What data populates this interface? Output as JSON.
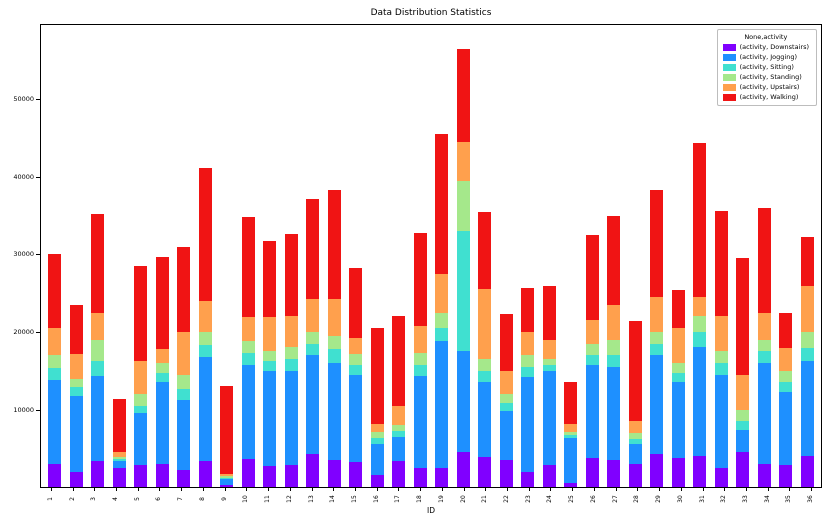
{
  "chart_data": {
    "type": "bar",
    "variant": "stacked",
    "title": "Data Distribution Statistics",
    "xlabel": "ID",
    "ylabel": "",
    "legend_title": "None,activity",
    "legend_position": "upper-right",
    "grid": false,
    "ylim": [
      0,
      59600
    ],
    "yticks": [
      10000,
      20000,
      30000,
      40000,
      50000
    ],
    "categories": [
      "1",
      "2",
      "3",
      "4",
      "5",
      "6",
      "7",
      "8",
      "9",
      "10",
      "11",
      "12",
      "13",
      "14",
      "15",
      "16",
      "17",
      "18",
      "19",
      "20",
      "21",
      "22",
      "23",
      "24",
      "25",
      "26",
      "27",
      "28",
      "29",
      "30",
      "31",
      "32",
      "33",
      "34",
      "35",
      "36"
    ],
    "series": [
      {
        "name": "(activity, Downstairs)",
        "color": "#8000FF",
        "values": [
          3000,
          2000,
          3300,
          2500,
          2800,
          3000,
          2200,
          3300,
          300,
          3600,
          2700,
          2800,
          4200,
          3500,
          3200,
          1500,
          3400,
          2500,
          2500,
          4500,
          3900,
          3500,
          2000,
          2800,
          500,
          3700,
          3500,
          3000,
          4300,
          3700,
          4000,
          2500,
          4500,
          3000,
          2800,
          4000
        ]
      },
      {
        "name": "(activity, Jogging)",
        "color": "#1E90FF",
        "values": [
          10800,
          9700,
          11000,
          800,
          6700,
          10500,
          9000,
          13500,
          700,
          12200,
          12300,
          12200,
          12800,
          12500,
          11300,
          4000,
          3100,
          11800,
          16300,
          13000,
          9600,
          6300,
          12200,
          12200,
          5800,
          12000,
          12000,
          2500,
          12700,
          9800,
          14000,
          12000,
          2800,
          13000,
          9400,
          12200
        ]
      },
      {
        "name": "(activity, Sitting)",
        "color": "#40E0D0",
        "values": [
          1500,
          1200,
          2000,
          300,
          1000,
          1200,
          1500,
          1500,
          200,
          1500,
          1200,
          1500,
          1500,
          1800,
          1300,
          800,
          700,
          1500,
          1700,
          15500,
          1500,
          1000,
          1300,
          800,
          400,
          1300,
          1500,
          700,
          1500,
          1200,
          2000,
          1500,
          1200,
          1500,
          1300,
          1800
        ]
      },
      {
        "name": "(activity, Standing)",
        "color": "#A5E88B",
        "values": [
          1700,
          1100,
          2700,
          300,
          1500,
          1300,
          1800,
          1700,
          200,
          1500,
          1300,
          1500,
          1500,
          1700,
          1400,
          800,
          800,
          1500,
          2000,
          6500,
          1500,
          1200,
          1500,
          700,
          400,
          1500,
          2000,
          800,
          1500,
          1300,
          2000,
          1500,
          1500,
          1500,
          1500,
          2000
        ]
      },
      {
        "name": "(activity, Upstairs)",
        "color": "#FFA04D",
        "values": [
          3500,
          3200,
          3500,
          600,
          4300,
          1800,
          5500,
          4000,
          300,
          3200,
          4500,
          4000,
          4300,
          4800,
          2000,
          1000,
          2500,
          3500,
          5000,
          5000,
          9000,
          3000,
          3000,
          2500,
          1000,
          3000,
          4500,
          1500,
          4500,
          4500,
          2500,
          4500,
          4500,
          3500,
          3000,
          6000
        ]
      },
      {
        "name": "(activity, Walking)",
        "color": "#F01414",
        "values": [
          9500,
          6300,
          12700,
          6800,
          12200,
          11900,
          11000,
          17200,
          11300,
          12800,
          9700,
          10600,
          12800,
          14000,
          9000,
          12400,
          11600,
          12000,
          18000,
          12000,
          10000,
          7300,
          5700,
          6900,
          5400,
          11000,
          11500,
          12900,
          13800,
          4900,
          19900,
          13600,
          15000,
          13500,
          4400,
          6300
        ]
      }
    ]
  }
}
